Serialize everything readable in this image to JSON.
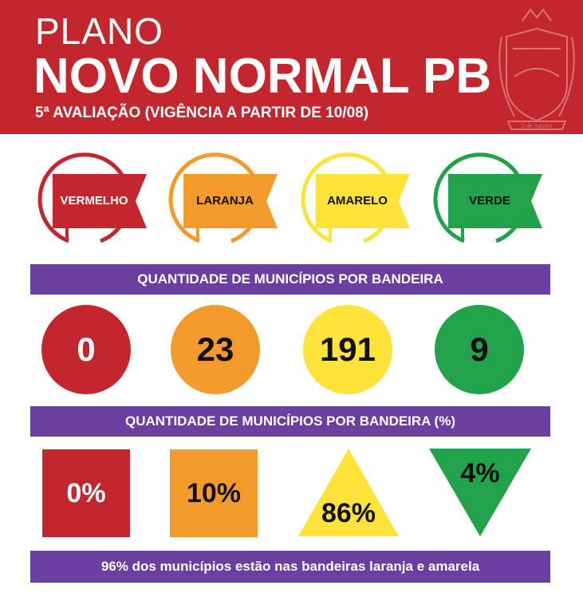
{
  "header": {
    "plano": "PLANO",
    "title": "NOVO NORMAL PB",
    "subtitle": "5ª AVALIAÇÃO (VIGÊNCIA A PARTIR DE 10/08)",
    "seal_text": "5 de Agosto"
  },
  "flags": [
    {
      "label": "VERMELHO",
      "color": "#c2272d"
    },
    {
      "label": "LARANJA",
      "color": "#f39a2c"
    },
    {
      "label": "AMARELO",
      "color": "#fde33a"
    },
    {
      "label": "VERDE",
      "color": "#22a24a"
    }
  ],
  "section_counts": {
    "title": "QUANTIDADE DE MUNICÍPIOS POR BANDEIRA",
    "values": [
      "0",
      "23",
      "191",
      "9"
    ]
  },
  "section_percent": {
    "title": "QUANTIDADE DE MUNICÍPIOS POR BANDEIRA (%)",
    "values": [
      "0%",
      "10%",
      "86%",
      "4%"
    ]
  },
  "footer": {
    "text": "96% dos municípios estão nas bandeiras laranja e amarela"
  },
  "colors": {
    "header_bg": "#c2272d",
    "bar_bg": "#6a3fa0"
  }
}
